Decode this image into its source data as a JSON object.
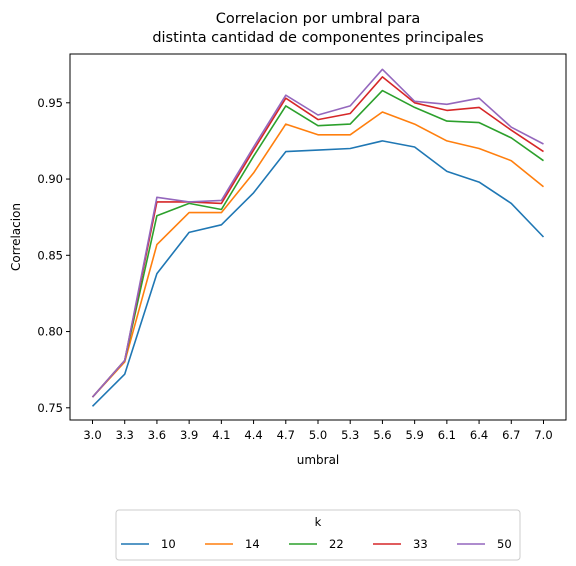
{
  "chart_data": {
    "type": "line",
    "title": "Correlacion por umbral para\ndistinta cantidad de componentes principales",
    "xlabel": "umbral",
    "ylabel": "Correlacion",
    "x": [
      "3.0",
      "3.3",
      "3.6",
      "3.9",
      "4.1",
      "4.4",
      "4.7",
      "5.0",
      "5.3",
      "5.6",
      "5.9",
      "6.1",
      "6.4",
      "6.7",
      "7.0"
    ],
    "ylim": [
      0.742,
      0.982
    ],
    "yticks": [
      "0.75",
      "0.80",
      "0.85",
      "0.90",
      "0.95"
    ],
    "grid": false,
    "legend": {
      "title": "k",
      "placement": "bottom-center",
      "columns": 5
    },
    "series": [
      {
        "name": "10",
        "color": "#1f77b4",
        "values": [
          0.751,
          0.772,
          0.838,
          0.865,
          0.87,
          0.891,
          0.918,
          0.919,
          0.92,
          0.925,
          0.921,
          0.905,
          0.898,
          0.884,
          0.862
        ]
      },
      {
        "name": "14",
        "color": "#ff7f0e",
        "values": [
          0.757,
          0.78,
          0.857,
          0.878,
          0.878,
          0.904,
          0.936,
          0.929,
          0.929,
          0.944,
          0.936,
          0.925,
          0.92,
          0.912,
          0.895
        ]
      },
      {
        "name": "22",
        "color": "#2ca02c",
        "values": [
          0.757,
          0.781,
          0.876,
          0.884,
          0.88,
          0.915,
          0.948,
          0.935,
          0.936,
          0.958,
          0.947,
          0.938,
          0.937,
          0.927,
          0.912
        ]
      },
      {
        "name": "33",
        "color": "#d62728",
        "values": [
          0.757,
          0.781,
          0.885,
          0.885,
          0.884,
          0.919,
          0.953,
          0.939,
          0.943,
          0.967,
          0.95,
          0.945,
          0.947,
          0.932,
          0.918
        ]
      },
      {
        "name": "50",
        "color": "#9467bd",
        "values": [
          0.757,
          0.781,
          0.888,
          0.885,
          0.886,
          0.921,
          0.955,
          0.942,
          0.948,
          0.972,
          0.951,
          0.949,
          0.953,
          0.934,
          0.923
        ]
      }
    ]
  }
}
